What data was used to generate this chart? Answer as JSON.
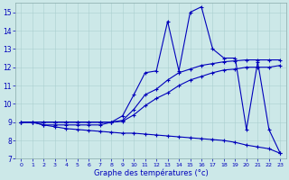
{
  "xlabel": "Graphe des températures (°c)",
  "background_color": "#cce8e8",
  "line_color": "#0000bb",
  "grid_color": "#aacfcf",
  "xlim": [
    -0.5,
    23.5
  ],
  "ylim": [
    7,
    15.5
  ],
  "yticks": [
    7,
    8,
    9,
    10,
    11,
    12,
    13,
    14,
    15
  ],
  "xticks": [
    0,
    1,
    2,
    3,
    4,
    5,
    6,
    7,
    8,
    9,
    10,
    11,
    12,
    13,
    14,
    15,
    16,
    17,
    18,
    19,
    20,
    21,
    22,
    23
  ],
  "series1_x": [
    0,
    1,
    2,
    3,
    4,
    5,
    6,
    7,
    8,
    9,
    10,
    11,
    12,
    13,
    14,
    15,
    16,
    17,
    18,
    19,
    20,
    21,
    22,
    23
  ],
  "series1_y": [
    9.0,
    9.0,
    8.85,
    8.85,
    8.85,
    8.85,
    8.85,
    8.85,
    9.0,
    9.35,
    10.5,
    11.7,
    11.8,
    14.5,
    11.8,
    15.0,
    15.3,
    13.0,
    12.5,
    12.5,
    8.6,
    12.3,
    8.6,
    7.3
  ],
  "series2_x": [
    0,
    1,
    2,
    3,
    4,
    5,
    6,
    7,
    8,
    9,
    10,
    11,
    12,
    13,
    14,
    15,
    16,
    17,
    18,
    19,
    20,
    21,
    22,
    23
  ],
  "series2_y": [
    9.0,
    9.0,
    9.0,
    9.0,
    9.0,
    9.0,
    9.0,
    9.0,
    9.0,
    9.1,
    9.7,
    10.5,
    10.8,
    11.3,
    11.7,
    11.9,
    12.1,
    12.2,
    12.3,
    12.35,
    12.4,
    12.4,
    12.4,
    12.4
  ],
  "series3_x": [
    0,
    1,
    2,
    3,
    4,
    5,
    6,
    7,
    8,
    9,
    10,
    11,
    12,
    13,
    14,
    15,
    16,
    17,
    18,
    19,
    20,
    21,
    22,
    23
  ],
  "series3_y": [
    9.0,
    9.0,
    9.0,
    9.0,
    9.0,
    9.0,
    9.0,
    9.0,
    9.0,
    9.05,
    9.4,
    9.9,
    10.3,
    10.6,
    11.0,
    11.3,
    11.5,
    11.7,
    11.85,
    11.9,
    12.0,
    12.0,
    12.0,
    12.1
  ],
  "series4_x": [
    0,
    1,
    2,
    3,
    4,
    5,
    6,
    7,
    8,
    9,
    10,
    11,
    12,
    13,
    14,
    15,
    16,
    17,
    18,
    19,
    20,
    21,
    22,
    23
  ],
  "series4_y": [
    9.0,
    9.0,
    8.85,
    8.75,
    8.65,
    8.6,
    8.55,
    8.5,
    8.45,
    8.4,
    8.4,
    8.35,
    8.3,
    8.25,
    8.2,
    8.15,
    8.1,
    8.05,
    8.0,
    7.9,
    7.75,
    7.65,
    7.55,
    7.3
  ]
}
